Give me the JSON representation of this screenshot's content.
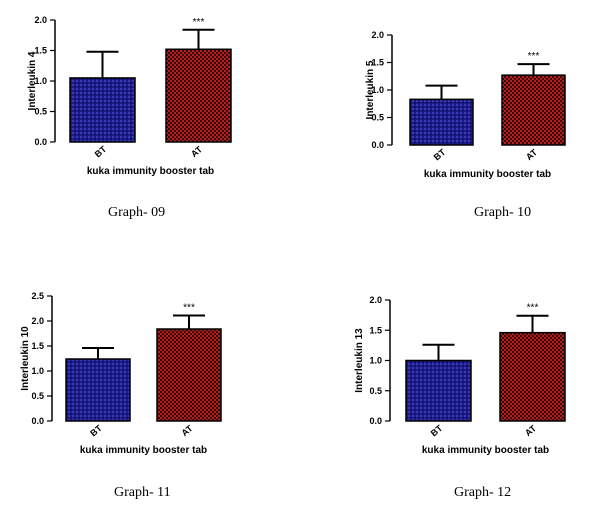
{
  "colors": {
    "bt": "#1c1c8c",
    "at": "#b42020"
  },
  "chart_data": [
    {
      "type": "bar",
      "title": "",
      "caption": "Graph- 09",
      "categories": [
        "BT",
        "AT"
      ],
      "values": [
        1.05,
        1.52
      ],
      "errors": [
        0.43,
        0.32
      ],
      "annotations": [
        "",
        "***"
      ],
      "xlabel": "kuka immunity booster tab",
      "ylabel": "Interleukin 4",
      "ylim": [
        0,
        2.0
      ],
      "yticks": [
        "0.0",
        "0.5",
        "1.0",
        "1.5",
        "2.0"
      ]
    },
    {
      "type": "bar",
      "title": "",
      "caption": "Graph- 10",
      "categories": [
        "BT",
        "AT"
      ],
      "values": [
        0.83,
        1.27
      ],
      "errors": [
        0.25,
        0.2
      ],
      "annotations": [
        "",
        "***"
      ],
      "xlabel": "kuka immunity booster tab",
      "ylabel": "Interleukin 5",
      "ylim": [
        0,
        2.0
      ],
      "yticks": [
        "0.0",
        "0.5",
        "1.0",
        "1.5",
        "2.0"
      ]
    },
    {
      "type": "bar",
      "title": "",
      "caption": "Graph- 11",
      "categories": [
        "BT",
        "AT"
      ],
      "values": [
        1.24,
        1.84
      ],
      "errors": [
        0.22,
        0.27
      ],
      "annotations": [
        "",
        "***"
      ],
      "xlabel": "kuka immunity booster tab",
      "ylabel": "Interleukin 10",
      "ylim": [
        0,
        2.5
      ],
      "yticks": [
        "0.0",
        "0.5",
        "1.0",
        "1.5",
        "2.0",
        "2.5"
      ]
    },
    {
      "type": "bar",
      "title": "",
      "caption": "Graph- 12",
      "categories": [
        "BT",
        "AT"
      ],
      "values": [
        1.0,
        1.46
      ],
      "errors": [
        0.26,
        0.28
      ],
      "annotations": [
        "",
        "***"
      ],
      "xlabel": "kuka immunity booster tab",
      "ylabel": "Interleukin 13",
      "ylim": [
        0,
        2.0
      ],
      "yticks": [
        "0.0",
        "0.5",
        "1.0",
        "1.5",
        "2.0"
      ]
    }
  ]
}
